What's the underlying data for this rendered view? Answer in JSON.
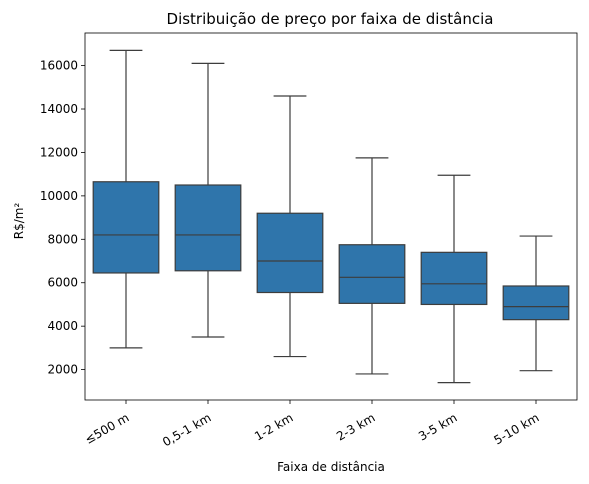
{
  "chart_data": {
    "type": "box",
    "title": "Distribuição de preço por faixa de distância",
    "xlabel": "Faixa de distância",
    "ylabel": "R$/m²",
    "categories": [
      "≤500 m",
      "0,5-1 km",
      "1-2 km",
      "2-3 km",
      "3-5 km",
      "5-10 km"
    ],
    "boxes": [
      {
        "whislo": 3000,
        "q1": 6450,
        "med": 8200,
        "q3": 10650,
        "whishi": 16700
      },
      {
        "whislo": 3500,
        "q1": 6550,
        "med": 8200,
        "q3": 10500,
        "whishi": 16100
      },
      {
        "whislo": 2600,
        "q1": 5550,
        "med": 7000,
        "q3": 9200,
        "whishi": 14600
      },
      {
        "whislo": 1800,
        "q1": 5050,
        "med": 6250,
        "q3": 7750,
        "whishi": 11750
      },
      {
        "whislo": 1400,
        "q1": 5000,
        "med": 5950,
        "q3": 7400,
        "whishi": 10950
      },
      {
        "whislo": 1950,
        "q1": 4300,
        "med": 4900,
        "q3": 5850,
        "whishi": 8150
      }
    ],
    "yticks": [
      2000,
      4000,
      6000,
      8000,
      10000,
      12000,
      14000,
      16000
    ],
    "ylim": [
      600,
      17500
    ],
    "grid": false,
    "box_color": "#2f75ab",
    "line_color": "#3d3d3d"
  }
}
